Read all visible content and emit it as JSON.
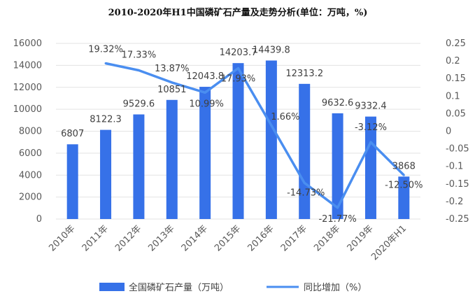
{
  "chart_data": {
    "type": "bar",
    "title": "2010-2020年H1中国磷矿石产量及走势分析(单位：万吨，%)",
    "categories": [
      "2010年",
      "2011年",
      "2012年",
      "2013年",
      "2014年",
      "2015年",
      "2016年",
      "2017年",
      "2018年",
      "2019年",
      "2020年H1"
    ],
    "series": [
      {
        "name": "全国磷矿石产量（万吨）",
        "kind": "bar",
        "axis": "left",
        "color": "#3671e8",
        "values": [
          6807,
          8122.3,
          9529.6,
          10851,
          12043.8,
          14203.7,
          14439.8,
          12313.2,
          9632.6,
          9332.4,
          3868
        ],
        "labels": [
          "6807",
          "8122.3",
          "9529.6",
          "10851",
          "12043.8",
          "14203.7",
          "14439.8",
          "12313.2",
          "9632.6",
          "9332.4",
          "3868"
        ]
      },
      {
        "name": "同比增加（%）",
        "kind": "line",
        "axis": "right",
        "color": "#4a8ef0",
        "values": [
          null,
          0.1932,
          0.1733,
          0.1387,
          0.1099,
          0.1793,
          0.0166,
          -0.1473,
          -0.2177,
          -0.0312,
          -0.125
        ],
        "labels": [
          "",
          "19.32%",
          "17.33%",
          "13.87%",
          "10.99%",
          "17.93%",
          "1.66%",
          "-14.73%",
          "-21.77%",
          "-3.12%",
          "-12.50%"
        ]
      }
    ],
    "yleft": {
      "min": 0,
      "max": 16000,
      "ticks": [
        "0",
        "2000",
        "4000",
        "6000",
        "8000",
        "10000",
        "12000",
        "14000",
        "16000"
      ]
    },
    "yright": {
      "min": -0.25,
      "max": 0.25,
      "ticks": [
        "-0.25",
        "-0.2",
        "-0.15",
        "-0.1",
        "-0.05",
        "0",
        "0.05",
        "0.1",
        "0.15",
        "0.2",
        "0.25"
      ]
    },
    "grid": true,
    "legend": "bottom"
  }
}
